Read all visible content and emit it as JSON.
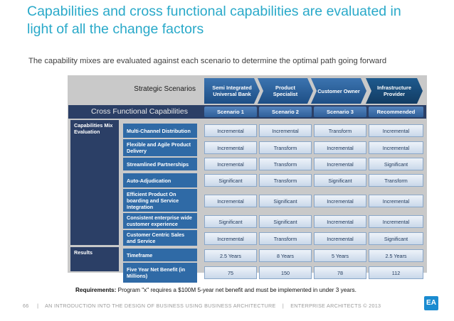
{
  "slide": {
    "title": "Capabilities and cross functional capabilities are evaluated in light of all the change factors",
    "subtitle": "The capability mixes are evaluated against each scenario to determine the optimal path going forward"
  },
  "scenarios": {
    "label": "Strategic Scenarios",
    "items": [
      "Semi Integrated Universal Bank",
      "Product Specialist",
      "Customer Owner",
      "Infrastructure Provider"
    ]
  },
  "table": {
    "section_label": "Cross Functional Capabilities",
    "headers": [
      "Scenario 1",
      "Scenario 2",
      "Scenario 3",
      "Recommended"
    ],
    "group1_label": "Capabilities Mix Evaluation",
    "group2_label": "Results",
    "rows": [
      {
        "label": "Multi-Channel Distribution",
        "values": [
          "Incremental",
          "Incremental",
          "Transform",
          "Incremental"
        ]
      },
      {
        "label": "Flexible and Agile Product Delivery",
        "values": [
          "Incremental",
          "Transform",
          "Incremental",
          "Incremental"
        ]
      },
      {
        "label": "Streamlined Partnerships",
        "values": [
          "Incremental",
          "Transform",
          "Incremental",
          "Significant"
        ]
      },
      {
        "label": "Auto-Adjudication",
        "values": [
          "Significant",
          "Transform",
          "Significant",
          "Transform"
        ]
      },
      {
        "label": "Efficient Product On boarding and Service Integration",
        "values": [
          "Incremental",
          "Significant",
          "Incremental",
          "Incremental"
        ]
      },
      {
        "label": "Consistent enterprise wide customer experience",
        "values": [
          "Significant",
          "Significant",
          "Incremental",
          "Incremental"
        ]
      },
      {
        "label": "Customer Centric Sales and Service",
        "values": [
          "Incremental",
          "Transform",
          "Incremental",
          "Significant"
        ]
      }
    ],
    "results": [
      {
        "label": "Timeframe",
        "values": [
          "2.5 Years",
          "8 Years",
          "5 Years",
          "2.5 Years"
        ]
      },
      {
        "label": "Five Year Net Benefit (in Millions)",
        "values": [
          "75",
          "150",
          "78",
          "112"
        ]
      }
    ]
  },
  "requirements": {
    "label": "Requirements:",
    "text": "Program \"x\" requires a $100M 5-year net benefit and must be implemented in under 3 years."
  },
  "footer": {
    "page": "66",
    "sep1": "|",
    "text": "AN INTRODUCTION INTO THE DESIGN OF BUSINESS USING BUSINESS ARCHITECTURE",
    "sep2": "|",
    "org": "ENTERPRISE ARCHITECTS © 2013",
    "logo": "EA"
  }
}
